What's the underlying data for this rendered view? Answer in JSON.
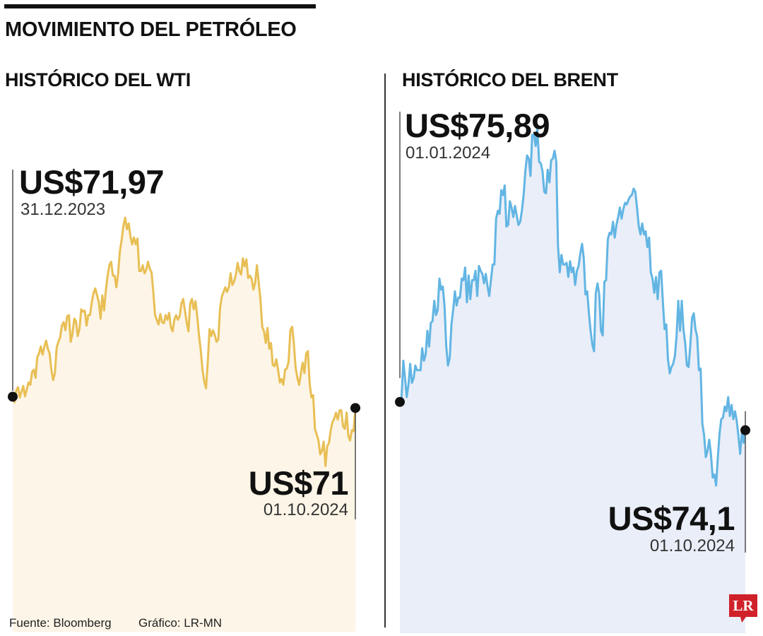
{
  "header": {
    "main_title": "MOVIMIENTO DEL PETRÓLEO"
  },
  "footer": {
    "source": "Fuente: Bloomberg",
    "credit": "Gráfico: LR-MN"
  },
  "logo": {
    "text": "LR",
    "color": "#d0212a"
  },
  "colors": {
    "wti_line": "#e8bf55",
    "wti_fill": "#fdf5e7",
    "brent_line": "#62b5e3",
    "brent_fill": "#e9eef8",
    "text": "#111111"
  },
  "chart_data": [
    {
      "type": "area",
      "title": "HISTÓRICO DEL WTI",
      "unit": "US$",
      "start": {
        "label": "US$71,97",
        "date": "31.12.2023",
        "value": 71.97
      },
      "end": {
        "label": "US$71",
        "date": "01.10.2024",
        "value": 71.0
      },
      "series": [
        {
          "values": [
            71.97,
            71.5,
            72.5,
            72.8,
            71.9,
            72.4,
            72.9,
            72.0,
            72.6,
            73.2,
            73.0,
            74.1,
            74.3,
            73.6,
            75.4,
            75.7,
            76.3,
            75.6,
            76.3,
            76.8,
            76.1,
            75.7,
            74.3,
            73.4,
            74.0,
            76.2,
            76.7,
            77.1,
            78.1,
            78.4,
            77.7,
            78.9,
            79.0,
            76.7,
            77.4,
            78.7,
            78.5,
            77.2,
            77.8,
            79.5,
            79.3,
            79.4,
            78.1,
            79.0,
            79.0,
            80.1,
            80.9,
            81.3,
            80.7,
            80.1,
            78.7,
            80.7,
            79.4,
            81.1,
            82.4,
            83.3,
            83.6,
            82.4,
            82.4,
            81.4,
            82.6,
            84.5,
            85.5,
            86.7,
            87.4,
            86.4,
            86.9,
            85.8,
            85.1,
            85.7,
            85.1,
            85.6,
            82.8,
            82.8,
            83.3,
            82.6,
            82.9,
            83.6,
            83.0,
            82.7,
            81.0,
            79.0,
            78.6,
            78.2,
            79.1,
            78.4,
            78.3,
            79.0,
            78.6,
            79.2,
            78.0,
            77.6,
            78.6,
            79.0,
            78.6,
            78.9,
            80.0,
            80.4,
            79.4,
            78.4,
            77.6,
            80.0,
            80.4,
            79.5,
            80.2,
            78.9,
            77.3,
            76.0,
            74.3,
            73.3,
            72.7,
            75.0,
            77.8,
            77.2,
            77.7,
            77.3,
            76.7,
            76.9,
            79.6,
            80.6,
            81.0,
            81.4,
            81.0,
            81.4,
            82.6,
            81.6,
            81.9,
            82.5,
            83.5,
            82.8,
            82.5,
            83.9,
            83.2,
            83.8,
            82.2,
            82.4,
            82.1,
            81.2,
            81.8,
            83.3,
            81.8,
            80.3,
            78.0,
            77.6,
            76.6,
            77.9,
            76.1,
            76.6,
            74.7,
            74.6,
            75.2,
            74.3,
            73.2,
            73.5,
            73.0,
            74.3,
            74.4,
            75.0,
            77.7,
            78.0,
            76.6,
            74.5,
            73.6,
            73.0,
            74.0,
            74.9,
            74.0,
            75.7,
            75.9,
            73.1,
            71.9,
            72.1,
            69.2,
            68.7,
            68.2,
            67.0,
            67.3,
            68.1,
            66.0,
            67.7,
            68.0,
            69.1,
            69.8,
            70.1,
            70.6,
            70.0,
            70.8,
            70.8,
            69.4,
            69.2,
            70.6,
            68.6,
            68.2,
            69.1,
            69.0,
            71.0
          ]
        }
      ]
    },
    {
      "type": "area",
      "title": "HISTÓRICO DEL BRENT",
      "unit": "US$",
      "start": {
        "label": "US$75,89",
        "date": "01.01.2024",
        "value": 75.89
      },
      "end": {
        "label": "US$74,1",
        "date": "01.10.2024",
        "value": 74.1
      },
      "series": [
        {
          "values": [
            75.89,
            76.2,
            78.5,
            77.4,
            76.2,
            77.0,
            78.3,
            77.1,
            77.4,
            78.2,
            77.9,
            77.9,
            77.9,
            79.3,
            78.5,
            78.9,
            80.4,
            79.4,
            80.9,
            81.0,
            82.3,
            81.4,
            81.7,
            83.7,
            83.0,
            83.2,
            81.9,
            79.4,
            78.2,
            78.7,
            80.8,
            81.7,
            82.9,
            82.0,
            82.5,
            82.5,
            83.7,
            83.6,
            84.4,
            82.2,
            83.9,
            82.4,
            83.6,
            83.6,
            84.2,
            82.6,
            84.5,
            84.2,
            84.0,
            83.4,
            84.0,
            83.2,
            82.6,
            83.6,
            84.6,
            84.6,
            87.5,
            88.0,
            87.8,
            89.3,
            89.0,
            89.6,
            87.0,
            87.1,
            88.6,
            88.2,
            87.6,
            88.3,
            87.7,
            87.1,
            87.3,
            88.0,
            89.0,
            90.5,
            91.5,
            91.3,
            90.2,
            92.8,
            92.8,
            92.1,
            93.2,
            91.1,
            91.0,
            90.5,
            89.2,
            89.1,
            90.6,
            89.8,
            91.2,
            91.3,
            91.8,
            91.1,
            85.8,
            84.1,
            85.2,
            84.6,
            84.6,
            84.7,
            83.8,
            84.8,
            84.1,
            84.4,
            83.3,
            84.2,
            84.5,
            85.3,
            85.9,
            85.0,
            82.7,
            82.9,
            81.5,
            80.4,
            79.5,
            79.1,
            82.8,
            83.4,
            82.7,
            80.4,
            80.1,
            83.5,
            83.6,
            86.2,
            86.6,
            86.5,
            87.3,
            86.3,
            87.1,
            87.6,
            88.2,
            87.5,
            88.1,
            88.5,
            88.4,
            88.7,
            88.9,
            89.0,
            89.4,
            89.2,
            88.2,
            87.0,
            86.5,
            87.2,
            86.5,
            86.7,
            85.7,
            86.3,
            84.1,
            83.7,
            82.8,
            83.8,
            82.4,
            84.1,
            84.2,
            82.3,
            80.5,
            80.8,
            78.6,
            77.7,
            78.1,
            78.3,
            78.8,
            80.1,
            82.3,
            80.4,
            82.3,
            80.5,
            79.6,
            78.2,
            78.1,
            79.5,
            81.2,
            81.5,
            80.5,
            80.0,
            77.9,
            78.0,
            74.5,
            73.8,
            72.4,
            72.8,
            73.5,
            72.6,
            71.1,
            71.3,
            70.6,
            72.4,
            73.9,
            74.8,
            74.9,
            75.6,
            75.3,
            76.2,
            75.0,
            75.7,
            74.8,
            75.3,
            74.7,
            73.7,
            72.6,
            74.0,
            73.3,
            74.1
          ]
        }
      ]
    }
  ]
}
